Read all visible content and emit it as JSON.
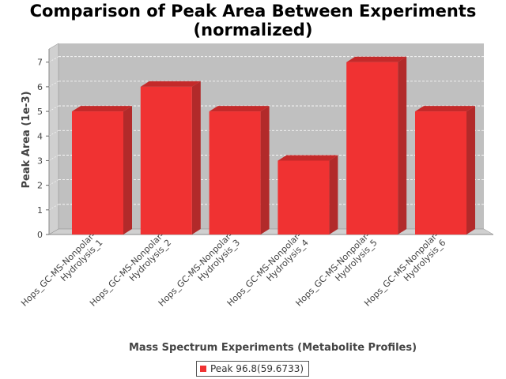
{
  "chart_data": {
    "type": "bar",
    "title_lines": [
      "Comparison of Peak Area Between Experiments",
      "(normalized)"
    ],
    "xlabel": "Mass Spectrum Experiments (Metabolite Profiles)",
    "ylabel": "Peak Area (1e-3)",
    "categories": [
      [
        "Hops_GC-MS-Nonpolar-",
        "Hydrolysis_1"
      ],
      [
        "Hops_GC-MS-Nonpolar-",
        "Hydrolysis_2"
      ],
      [
        "Hops_GC-MS-Nonpolar-",
        "Hydrolysis_3"
      ],
      [
        "Hops_GC-MS-Nonpolar-",
        "Hydrolysis_4"
      ],
      [
        "Hops_GC-MS-Nonpolar-",
        "Hydrolysis_5"
      ],
      [
        "Hops_GC-MS-Nonpolar-",
        "Hydrolysis_6"
      ]
    ],
    "series": [
      {
        "name": "Peak 96.8(59.6733)",
        "values": [
          5,
          6,
          5,
          3,
          7,
          5
        ]
      }
    ],
    "ylim": [
      0,
      7.6
    ],
    "yticks": [
      "0",
      "1",
      "2",
      "3",
      "4",
      "5",
      "6",
      "7"
    ],
    "grid": true,
    "legend_position": "bottom",
    "colors": {
      "bar": "#f03232",
      "bar_top": "#c42a2a",
      "bar_side": "#b22a2a",
      "plot_bg": "#c0c0c0",
      "wall": "#d0d0d0"
    }
  }
}
